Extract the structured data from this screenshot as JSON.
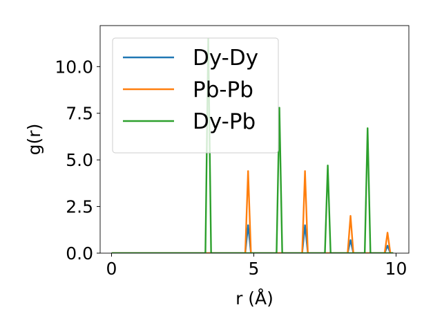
{
  "chart_data": {
    "type": "line",
    "xlabel": "r (Å)",
    "ylabel": "g(r)",
    "xlim": [
      -0.4,
      10.45
    ],
    "ylim": [
      0,
      12.2
    ],
    "xticks": [
      0,
      5,
      10
    ],
    "xtick_labels": [
      "0",
      "5",
      "10"
    ],
    "yticks": [
      0,
      2.5,
      5,
      7.5,
      10
    ],
    "ytick_labels": [
      "0.0",
      "2.5",
      "5.0",
      "7.5",
      "10.0"
    ],
    "grid": false,
    "legend_position": "upper-left",
    "series": [
      {
        "name": "Dy-Dy",
        "color": "#1f77b4",
        "peaks": [
          [
            4.8,
            1.5
          ],
          [
            6.8,
            1.5
          ],
          [
            8.4,
            0.7
          ],
          [
            9.7,
            0.4
          ]
        ]
      },
      {
        "name": "Pb-Pb",
        "color": "#ff7f0e",
        "peaks": [
          [
            4.8,
            4.4
          ],
          [
            6.8,
            4.4
          ],
          [
            8.4,
            2.0
          ],
          [
            9.7,
            1.1
          ]
        ]
      },
      {
        "name": "Dy-Pb",
        "color": "#2ca02c",
        "peaks": [
          [
            3.4,
            11.5
          ],
          [
            5.9,
            7.8
          ],
          [
            7.6,
            4.7
          ],
          [
            9.0,
            6.7
          ]
        ]
      }
    ],
    "x_range": [
      0,
      9.9
    ],
    "peak_halfwidth": 0.1
  }
}
